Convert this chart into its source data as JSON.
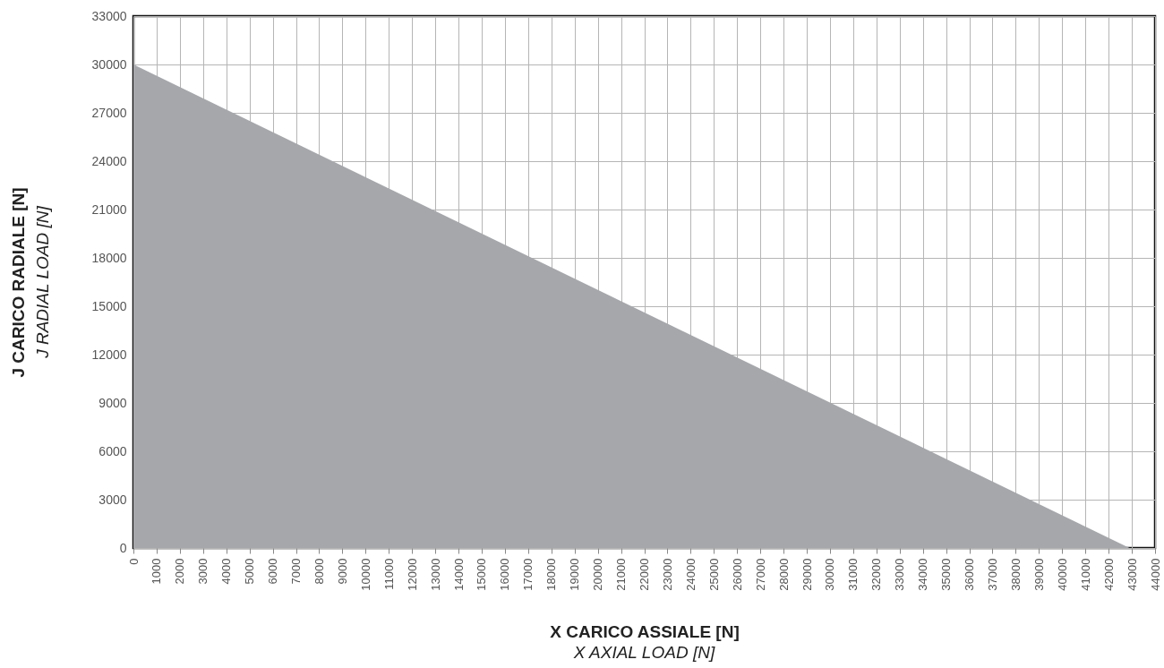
{
  "chart_data": {
    "type": "area",
    "xlabel": "X CARICO ASSIALE [N]\nX AXIAL LOAD [N]",
    "ylabel": "J CARICO RADIALE [N]\nJ RADIAL LOAD [N]",
    "x": [
      0,
      42900
    ],
    "series": [
      {
        "color": "#a6a7aa",
        "values": [
          30000,
          0
        ]
      }
    ],
    "xlim": [
      0,
      44000
    ],
    "xticks": [
      0,
      1000,
      2000,
      3000,
      4000,
      5000,
      6000,
      7000,
      8000,
      9000,
      10000,
      11000,
      12000,
      13000,
      14000,
      15000,
      16000,
      17000,
      18000,
      19000,
      20000,
      21000,
      22000,
      23000,
      24000,
      25000,
      26000,
      27000,
      28000,
      29000,
      30000,
      31000,
      32000,
      33000,
      34000,
      35000,
      36000,
      37000,
      38000,
      39000,
      40000,
      41000,
      42000,
      43000,
      44000
    ],
    "ylim": [
      0,
      33000
    ],
    "yticks": [
      0,
      3000,
      6000,
      9000,
      12000,
      15000,
      18000,
      21000,
      24000,
      27000,
      30000,
      33000
    ],
    "grid": true
  }
}
